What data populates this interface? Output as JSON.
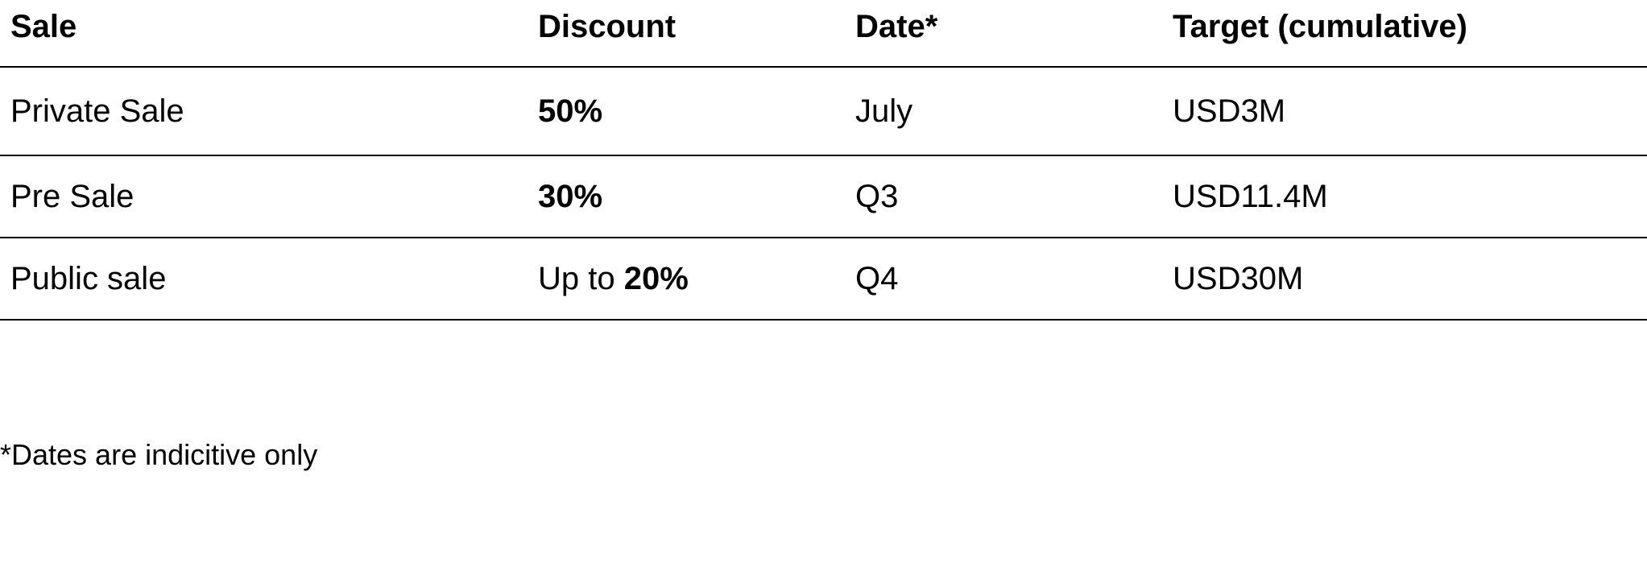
{
  "table": {
    "headers": {
      "sale": "Sale",
      "discount": "Discount",
      "date": "Date*",
      "target": "Target (cumulative)"
    },
    "rows": [
      {
        "sale": "Private Sale",
        "discount_prefix": "",
        "discount_value": "50%",
        "date": "July",
        "target": "USD3M"
      },
      {
        "sale": "Pre Sale",
        "discount_prefix": "",
        "discount_value": "30%",
        "date": "Q3",
        "target": "USD11.4M"
      },
      {
        "sale": "Public sale",
        "discount_prefix": "Up to ",
        "discount_value": "20%",
        "date": "Q4",
        "target": "USD30M"
      }
    ]
  },
  "footnote": "*Dates are indicitive only"
}
